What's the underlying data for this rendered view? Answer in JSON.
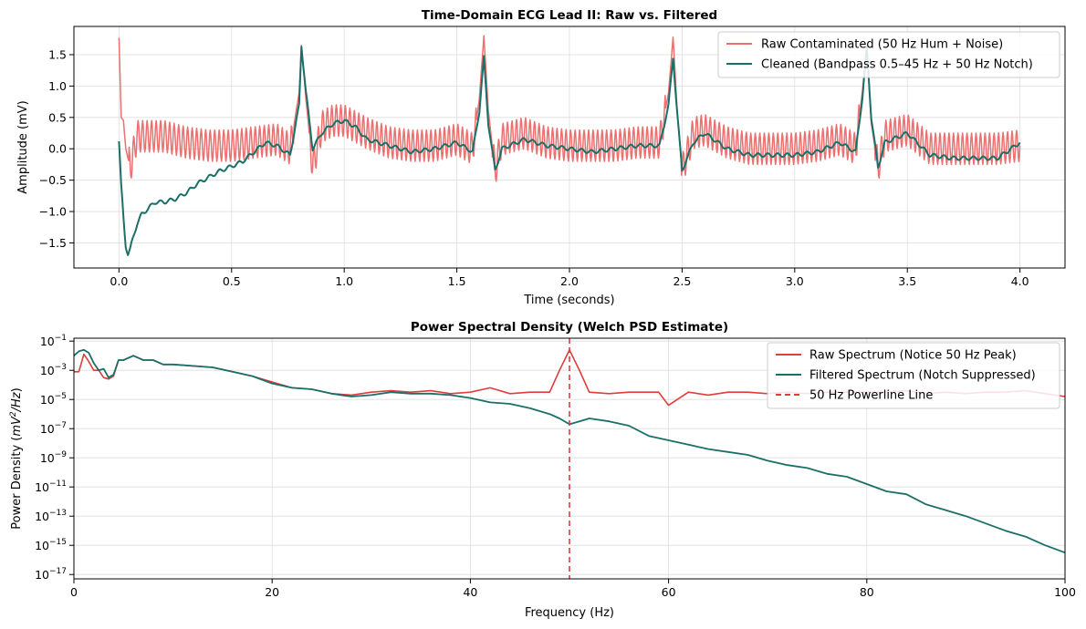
{
  "chart_data": [
    {
      "type": "line",
      "title": "Time-Domain ECG Lead II: Raw vs. Filtered",
      "xlabel": "Time (seconds)",
      "ylabel": "Amplitude (mV)",
      "xlim": [
        -0.2,
        4.2
      ],
      "ylim": [
        -1.9,
        1.95
      ],
      "xticks": [
        0.0,
        0.5,
        1.0,
        1.5,
        2.0,
        2.5,
        3.0,
        3.5,
        4.0
      ],
      "xtick_labels": [
        "0.0",
        "0.5",
        "1.0",
        "1.5",
        "2.0",
        "2.5",
        "3.0",
        "3.5",
        "4.0"
      ],
      "yticks": [
        -1.5,
        -1.0,
        -0.5,
        0.0,
        0.5,
        1.0,
        1.5
      ],
      "ytick_labels": [
        "−1.5",
        "−1.0",
        "−0.5",
        "0.0",
        "0.5",
        "1.0",
        "1.5"
      ],
      "grid": true,
      "legend_position": "upper right",
      "series": [
        {
          "name": "Raw Contaminated (50 Hz Hum + Noise)",
          "color": "#ec7070",
          "x": [
            0.0,
            0.01,
            0.02,
            0.03,
            0.05,
            0.08,
            0.12,
            0.2,
            0.3,
            0.4,
            0.5,
            0.6,
            0.7,
            0.76,
            0.8,
            0.81,
            0.83,
            0.86,
            0.9,
            0.95,
            1.0,
            1.1,
            1.2,
            1.3,
            1.4,
            1.5,
            1.57,
            1.6,
            1.62,
            1.64,
            1.67,
            1.7,
            1.8,
            1.9,
            2.0,
            2.1,
            2.2,
            2.3,
            2.4,
            2.44,
            2.46,
            2.48,
            2.5,
            2.55,
            2.6,
            2.7,
            2.8,
            2.9,
            3.0,
            3.1,
            3.2,
            3.27,
            3.3,
            3.32,
            3.34,
            3.37,
            3.4,
            3.5,
            3.6,
            3.7,
            3.8,
            3.9,
            4.0
          ],
          "y": [
            1.77,
            0.5,
            0.45,
            0.0,
            -0.3,
            0.2,
            0.2,
            0.2,
            0.1,
            0.05,
            0.05,
            0.1,
            0.15,
            0.0,
            0.9,
            1.65,
            0.8,
            -0.3,
            0.35,
            0.45,
            0.45,
            0.25,
            0.1,
            0.05,
            0.05,
            0.15,
            0.0,
            0.8,
            1.8,
            0.6,
            -0.35,
            0.15,
            0.25,
            0.1,
            0.05,
            0.05,
            0.05,
            0.1,
            0.1,
            0.9,
            1.78,
            0.5,
            -0.35,
            0.25,
            0.3,
            0.1,
            0.0,
            0.0,
            0.0,
            0.05,
            0.15,
            0.0,
            0.9,
            1.65,
            0.4,
            -0.3,
            0.2,
            0.3,
            0.0,
            0.0,
            0.0,
            0.0,
            0.05
          ],
          "hum_amplitude": 0.25
        },
        {
          "name": "Cleaned (Bandpass 0.5–45 Hz + 50 Hz Notch)",
          "color": "#1a7068",
          "x": [
            0.0,
            0.01,
            0.02,
            0.03,
            0.04,
            0.05,
            0.06,
            0.08,
            0.1,
            0.13,
            0.16,
            0.2,
            0.25,
            0.3,
            0.35,
            0.4,
            0.45,
            0.5,
            0.55,
            0.6,
            0.65,
            0.7,
            0.76,
            0.8,
            0.81,
            0.83,
            0.86,
            0.9,
            0.95,
            1.0,
            1.05,
            1.1,
            1.2,
            1.3,
            1.4,
            1.5,
            1.57,
            1.6,
            1.62,
            1.64,
            1.67,
            1.7,
            1.8,
            1.9,
            2.0,
            2.1,
            2.2,
            2.3,
            2.4,
            2.44,
            2.46,
            2.48,
            2.5,
            2.55,
            2.6,
            2.7,
            2.8,
            2.9,
            3.0,
            3.1,
            3.2,
            3.27,
            3.3,
            3.32,
            3.34,
            3.37,
            3.4,
            3.5,
            3.6,
            3.7,
            3.8,
            3.9,
            4.0
          ],
          "y": [
            0.12,
            -0.6,
            -1.1,
            -1.55,
            -1.68,
            -1.6,
            -1.45,
            -1.2,
            -1.05,
            -0.95,
            -0.85,
            -0.85,
            -0.8,
            -0.7,
            -0.55,
            -0.45,
            -0.35,
            -0.28,
            -0.2,
            -0.05,
            0.1,
            0.05,
            -0.1,
            0.7,
            1.65,
            0.9,
            0.0,
            0.25,
            0.4,
            0.45,
            0.35,
            0.15,
            0.05,
            -0.05,
            0.0,
            0.1,
            -0.05,
            0.6,
            1.45,
            0.4,
            -0.35,
            0.0,
            0.15,
            0.05,
            0.0,
            -0.05,
            0.0,
            0.05,
            0.05,
            0.7,
            1.45,
            0.5,
            -0.35,
            0.1,
            0.25,
            0.0,
            -0.1,
            -0.1,
            -0.1,
            -0.05,
            0.1,
            -0.05,
            0.8,
            1.6,
            0.5,
            -0.3,
            0.1,
            0.25,
            -0.1,
            -0.15,
            -0.15,
            -0.15,
            0.1
          ]
        }
      ]
    },
    {
      "type": "line",
      "title": "Power Spectral Density (Welch PSD Estimate)",
      "xlabel": "Frequency (Hz)",
      "ylabel_prefix": "Power Density (",
      "ylabel_unit_main": "mV",
      "ylabel_unit_exp": "2",
      "ylabel_unit_rest": "/Hz",
      "ylabel_suffix": ")",
      "yscale": "log",
      "xlim": [
        0,
        100
      ],
      "ylim_exp": [
        -17.3,
        -0.8
      ],
      "xticks": [
        0,
        20,
        40,
        60,
        80,
        100
      ],
      "xtick_labels": [
        "0",
        "20",
        "40",
        "60",
        "80",
        "100"
      ],
      "yticks_exp": [
        -1,
        -3,
        -5,
        -7,
        -9,
        -11,
        -13,
        -15,
        -17
      ],
      "ytick_base": "10",
      "ytick_exp_labels": [
        "−1",
        "−3",
        "−5",
        "−7",
        "−9",
        "−11",
        "−13",
        "−15",
        "−17"
      ],
      "grid": true,
      "legend_position": "upper right",
      "vline_x": 50,
      "series": [
        {
          "name": "Raw Spectrum (Notice 50 Hz Peak)",
          "color": "#e03c3c",
          "x": [
            0,
            0.5,
            1,
            1.5,
            2,
            2.5,
            3,
            3.5,
            4,
            4.5,
            5,
            6,
            7,
            8,
            9,
            10,
            12,
            14,
            16,
            18,
            20,
            22,
            24,
            26,
            28,
            30,
            32,
            34,
            36,
            38,
            40,
            42,
            44,
            46,
            48,
            49,
            50,
            51,
            52,
            54,
            56,
            58,
            59,
            60,
            62,
            64,
            66,
            68,
            70,
            72,
            74,
            76,
            78,
            80,
            82,
            84,
            86,
            88,
            90,
            92,
            94,
            96,
            98,
            100
          ],
          "y_log10": [
            -3.1,
            -3.1,
            -1.9,
            -2.4,
            -3.0,
            -3.0,
            -3.5,
            -3.6,
            -3.4,
            -2.3,
            -2.3,
            -2.0,
            -2.3,
            -2.3,
            -2.6,
            -2.6,
            -2.7,
            -2.8,
            -3.1,
            -3.4,
            -3.8,
            -4.2,
            -4.3,
            -4.6,
            -4.7,
            -4.5,
            -4.4,
            -4.5,
            -4.4,
            -4.6,
            -4.5,
            -4.2,
            -4.6,
            -4.5,
            -4.5,
            -3.0,
            -1.6,
            -3.0,
            -4.5,
            -4.6,
            -4.5,
            -4.5,
            -4.5,
            -5.4,
            -4.5,
            -4.7,
            -4.5,
            -4.5,
            -4.6,
            -4.5,
            -4.6,
            -4.5,
            -4.5,
            -4.5,
            -4.5,
            -4.4,
            -4.6,
            -4.5,
            -4.6,
            -4.5,
            -4.5,
            -4.4,
            -4.6,
            -4.8
          ]
        },
        {
          "name": "Filtered Spectrum (Notch Suppressed)",
          "color": "#1a7068",
          "x": [
            0,
            0.5,
            1,
            1.5,
            2,
            2.5,
            3,
            3.5,
            4,
            4.5,
            5,
            6,
            7,
            8,
            9,
            10,
            12,
            14,
            16,
            18,
            20,
            22,
            24,
            26,
            28,
            30,
            32,
            34,
            36,
            38,
            40,
            42,
            44,
            46,
            48,
            49,
            50,
            51,
            52,
            54,
            56,
            58,
            60,
            62,
            64,
            66,
            68,
            70,
            72,
            74,
            76,
            78,
            80,
            82,
            84,
            86,
            88,
            90,
            92,
            94,
            96,
            98,
            100
          ],
          "y_log10": [
            -2.0,
            -1.7,
            -1.6,
            -1.8,
            -2.5,
            -3.0,
            -2.9,
            -3.5,
            -3.3,
            -2.3,
            -2.3,
            -2.0,
            -2.3,
            -2.3,
            -2.6,
            -2.6,
            -2.7,
            -2.8,
            -3.1,
            -3.4,
            -3.9,
            -4.2,
            -4.3,
            -4.6,
            -4.8,
            -4.7,
            -4.5,
            -4.6,
            -4.6,
            -4.7,
            -4.9,
            -5.2,
            -5.3,
            -5.6,
            -6.0,
            -6.3,
            -6.7,
            -6.5,
            -6.3,
            -6.5,
            -6.8,
            -7.5,
            -7.8,
            -8.1,
            -8.4,
            -8.6,
            -8.8,
            -9.2,
            -9.5,
            -9.7,
            -10.1,
            -10.3,
            -10.8,
            -11.3,
            -11.5,
            -12.2,
            -12.6,
            -13.0,
            -13.5,
            -14.0,
            -14.4,
            -15.0,
            -15.5
          ]
        },
        {
          "name": "50 Hz Powerline Line",
          "color": "#e03c3c",
          "style": "dashed"
        }
      ]
    }
  ]
}
